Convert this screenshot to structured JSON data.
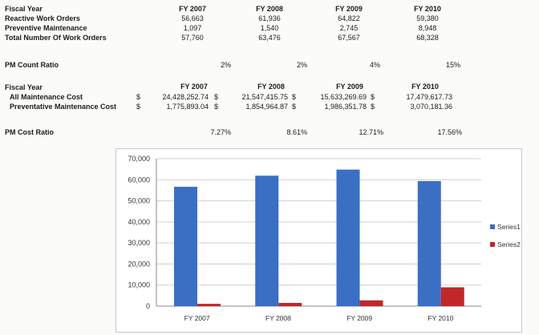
{
  "work_orders": {
    "label": "Fiscal Year",
    "years": [
      "FY 2007",
      "FY 2008",
      "FY 2009",
      "FY 2010"
    ],
    "rows": [
      {
        "label": "Reactive Work Orders",
        "values": [
          "56,663",
          "61,936",
          "64,822",
          "59,380"
        ]
      },
      {
        "label": "Preventive Maintenance",
        "values": [
          "1,097",
          "1,540",
          "2,745",
          "8,948"
        ]
      },
      {
        "label": "Total Number Of Work Orders",
        "values": [
          "57,760",
          "63,476",
          "67,567",
          "68,328"
        ]
      }
    ]
  },
  "pm_count_ratio": {
    "label": "PM Count Ratio",
    "values": [
      "2%",
      "2%",
      "4%",
      "15%"
    ]
  },
  "costs": {
    "label": "Fiscal Year",
    "years": [
      "FY 2007",
      "FY 2008",
      "FY 2009",
      "FY 2010"
    ],
    "currency": "$",
    "rows": [
      {
        "label": "All Maintenance Cost",
        "values": [
          "24,428,252.74",
          "21,547,415.75",
          "15,633,269.69",
          "17,479,617.73"
        ]
      },
      {
        "label": "Preventative Maintenance Cost",
        "values": [
          "1,775,893.04",
          "1,854,964.87",
          "1,986,351.78",
          "3,070,181.36"
        ]
      }
    ]
  },
  "pm_cost_ratio": {
    "label": "PM Cost Ratio",
    "values": [
      "7.27%",
      "8.61%",
      "12.71%",
      "17.56%"
    ]
  },
  "chart_data": {
    "type": "bar",
    "categories": [
      "FY 2007",
      "FY 2008",
      "FY 2009",
      "FY 2010"
    ],
    "series": [
      {
        "name": "Series1",
        "color": "#3a6fc4",
        "values": [
          56663,
          61936,
          64822,
          59380
        ]
      },
      {
        "name": "Series2",
        "color": "#c0282a",
        "values": [
          1097,
          1540,
          2745,
          8948
        ]
      }
    ],
    "ylim": [
      0,
      70000
    ],
    "yticks": [
      "0",
      "10,000",
      "20,000",
      "30,000",
      "40,000",
      "50,000",
      "60,000",
      "70,000"
    ],
    "grid": true,
    "legend": "right"
  }
}
